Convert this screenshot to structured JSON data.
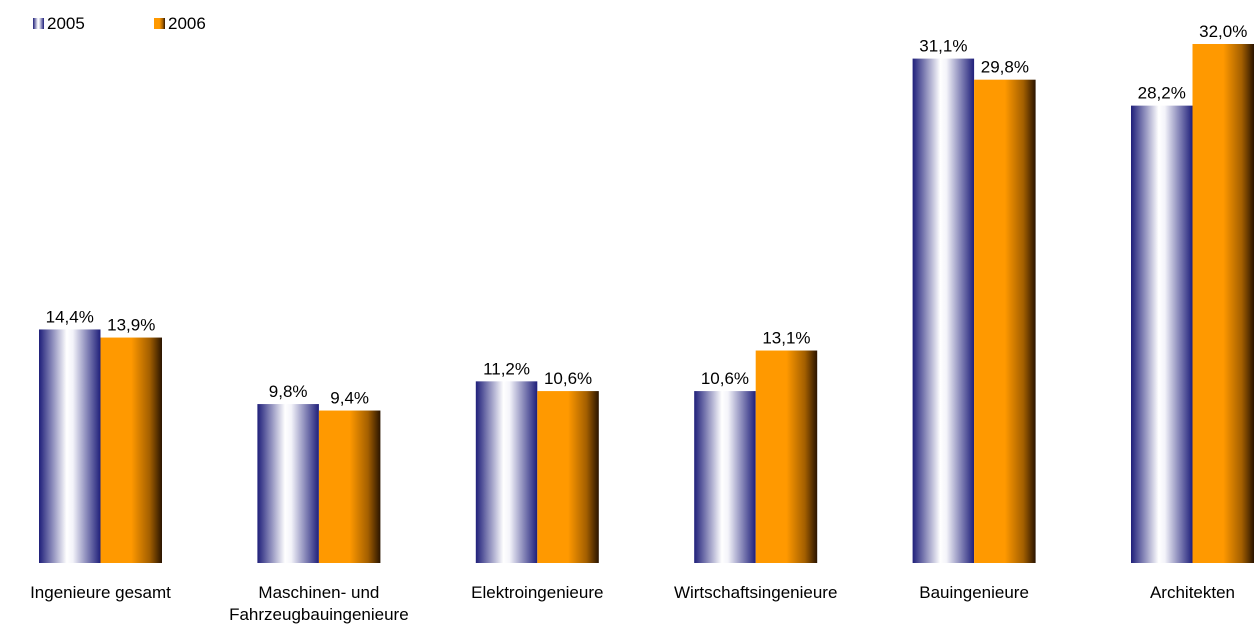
{
  "chart_data": {
    "type": "bar",
    "categories": [
      [
        "Ingenieure gesamt"
      ],
      [
        "Maschinen- und",
        "Fahrzeugbauingenieure"
      ],
      [
        "Elektroingenieure"
      ],
      [
        "Wirtschaftsingenieure"
      ],
      [
        "Bauingenieure"
      ],
      [
        "Architekten"
      ]
    ],
    "series": [
      {
        "name": "2005",
        "values": [
          14.4,
          9.8,
          11.2,
          10.6,
          31.1,
          28.2
        ],
        "labels": [
          "14,4%",
          "9,8%",
          "11,2%",
          "10,6%",
          "31,1%",
          "28,2%"
        ]
      },
      {
        "name": "2006",
        "values": [
          13.9,
          9.4,
          10.6,
          13.1,
          29.8,
          32.0
        ],
        "labels": [
          "13,9%",
          "9,4%",
          "10,6%",
          "13,1%",
          "29,8%",
          "32,0%"
        ]
      }
    ],
    "ylim": [
      0,
      32
    ],
    "grid": false,
    "legend_position": "top-left",
    "title": "",
    "xlabel": "",
    "ylabel": ""
  },
  "colors": {
    "series_2005_dark": "#1f1f7a",
    "series_2005_light": "#ffffff",
    "series_2006_light": "#ff9900",
    "series_2006_dark": "#2a1400"
  }
}
